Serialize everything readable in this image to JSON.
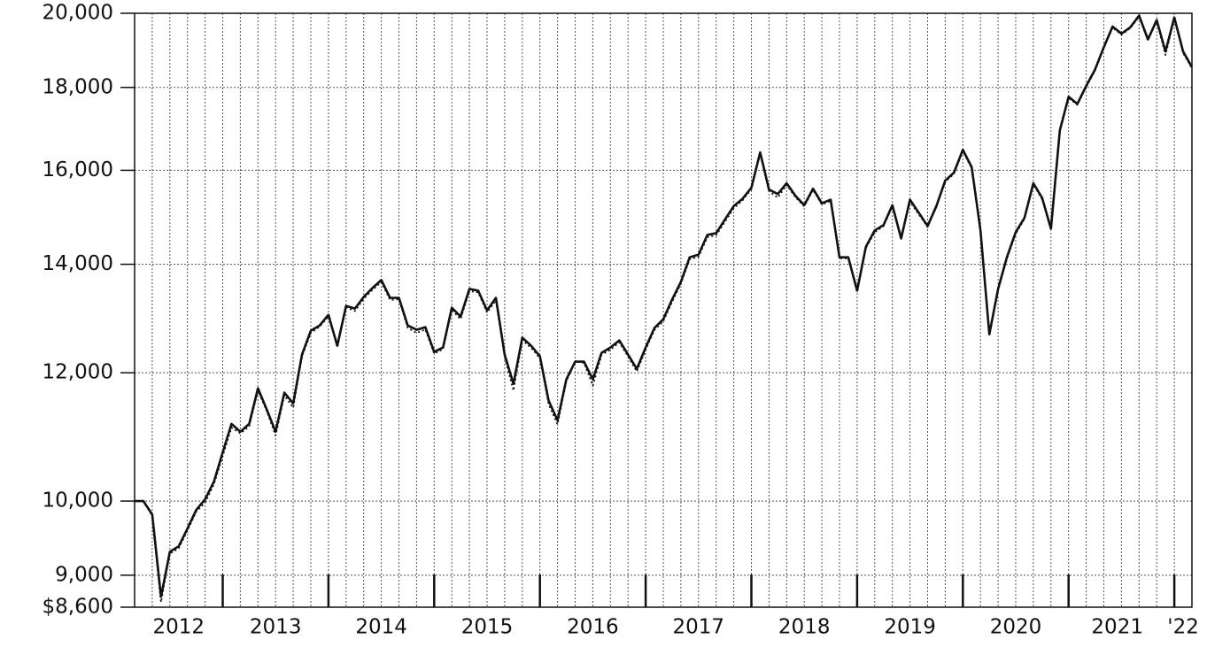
{
  "chart_data": {
    "type": "line",
    "log_scale": true,
    "grid": true,
    "x_labels": [
      "2012",
      "2013",
      "2014",
      "2015",
      "2016",
      "2017",
      "2018",
      "2019",
      "2020",
      "2021",
      "'22"
    ],
    "ylim": [
      8600,
      20000
    ],
    "yticks": [
      {
        "value": 8600,
        "label": "$8,600"
      },
      {
        "value": 9000,
        "label": "9,000"
      },
      {
        "value": 10000,
        "label": "10,000"
      },
      {
        "value": 12000,
        "label": "12,000"
      },
      {
        "value": 14000,
        "label": "14,000"
      },
      {
        "value": 16000,
        "label": "16,000"
      },
      {
        "value": 18000,
        "label": "18,000"
      },
      {
        "value": 20000,
        "label": "20,000"
      }
    ],
    "series": [
      {
        "color": "#111111",
        "style": "solid",
        "values": [
          10000,
          10000,
          9812,
          8727,
          9306,
          9377,
          9617,
          9875,
          10025,
          10281,
          10718,
          11159,
          11035,
          11159,
          11738,
          11387,
          11035,
          11665,
          11488,
          12314,
          12739,
          12835,
          13030,
          12470,
          13196,
          13146,
          13365,
          13535,
          13690,
          13348,
          13348,
          12835,
          12755,
          12803,
          12361,
          12438,
          13163,
          12997,
          13518,
          13484,
          13113,
          13348,
          12314,
          11812,
          12613,
          12470,
          12283,
          11532,
          11216,
          11887,
          12190,
          12190,
          11887,
          12345,
          12438,
          12565,
          12314,
          12066,
          12438,
          12787,
          12948,
          13315,
          13655,
          14140,
          14194,
          14597,
          14634,
          14917,
          15207,
          15366,
          15608,
          16411,
          15568,
          15469,
          15710,
          15430,
          15226,
          15588,
          15266,
          15346,
          14140,
          14140,
          13484,
          14355,
          14690,
          14801,
          15226,
          14524,
          15346,
          15064,
          14784,
          15207,
          15770,
          15950,
          16474,
          16071,
          14690,
          12674,
          13518,
          14140,
          14653,
          14955,
          15710,
          15386,
          14727,
          16933,
          17763,
          17584,
          18039,
          18461,
          19061,
          19627,
          19429,
          19603,
          19934,
          19271,
          19808,
          18942,
          19883,
          18942,
          18528
        ]
      },
      {
        "color": "#111111",
        "style": "dotted",
        "values": [
          10000,
          10000,
          9790,
          8660,
          9280,
          9350,
          9590,
          9850,
          9980,
          10240,
          10660,
          11100,
          11010,
          11120,
          11700,
          11360,
          10980,
          11620,
          11420,
          12280,
          12700,
          12810,
          13000,
          12450,
          13170,
          13100,
          13330,
          13500,
          13650,
          13310,
          13320,
          12790,
          12700,
          12760,
          12330,
          12410,
          13120,
          12950,
          13480,
          13450,
          13070,
          13300,
          12270,
          11700,
          12570,
          12430,
          12250,
          11470,
          11150,
          11850,
          12200,
          12170,
          11780,
          12310,
          12400,
          12530,
          12280,
          12020,
          12400,
          12750,
          12910,
          13270,
          13620,
          14100,
          14150,
          14550,
          14590,
          14870,
          15160,
          15330,
          15580,
          16380,
          15530,
          15390,
          15670,
          15400,
          15200,
          15560,
          15240,
          15320,
          14120,
          14120,
          13460,
          14330,
          14650,
          14780,
          15200,
          14560,
          15300,
          15030,
          14760,
          15190,
          15740,
          15920,
          16440,
          16040,
          14660,
          12650,
          13490,
          14110,
          14620,
          14930,
          15680,
          15360,
          14700,
          16900,
          17730,
          17560,
          18010,
          18430,
          19030,
          19600,
          19400,
          19580,
          19900,
          19240,
          19780,
          18850,
          19850,
          18900,
          18500
        ]
      }
    ]
  }
}
